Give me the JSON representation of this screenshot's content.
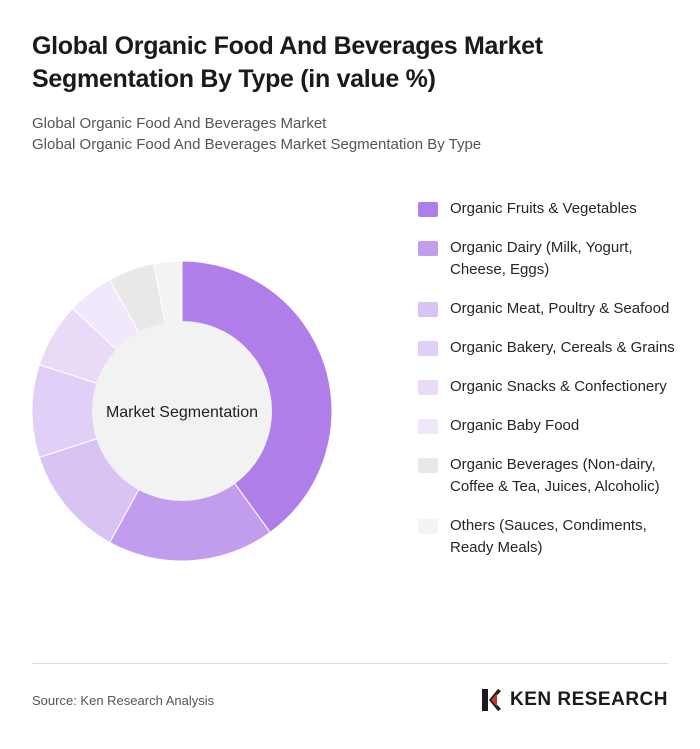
{
  "header": {
    "title": "Global Organic Food And Beverages Market Segmentation By Type (in value %)",
    "subtitle_line1": "Global Organic Food And Beverages Market",
    "subtitle_line2": "Global Organic Food And Beverages Market Segmentation By Type"
  },
  "chart_data": {
    "type": "pie",
    "variant": "donut",
    "center_label": "Market Segmentation",
    "legend_position": "right",
    "slices": [
      {
        "label": "Organic Fruits & Vegetables",
        "value": 40,
        "color": "#b07ee8"
      },
      {
        "label": "Organic Dairy (Milk, Yogurt, Cheese, Eggs)",
        "value": 18,
        "color": "#c29ded"
      },
      {
        "label": "Organic Meat, Poultry & Seafood",
        "value": 12,
        "color": "#d9c3f4"
      },
      {
        "label": "Organic Bakery, Cereals & Grains",
        "value": 10,
        "color": "#e0cff6"
      },
      {
        "label": "Organic Snacks & Confectionery",
        "value": 7,
        "color": "#e9dbf8"
      },
      {
        "label": "Organic Baby Food",
        "value": 5,
        "color": "#f1e9fb"
      },
      {
        "label": "Organic Beverages (Non-dairy, Coffee & Tea, Juices, Alcoholic)",
        "value": 5,
        "color": "#e8e8e8"
      },
      {
        "label": "Others (Sauces, Condiments, Ready Meals)",
        "value": 3,
        "color": "#f3f3f3"
      }
    ]
  },
  "footer": {
    "source": "Source: Ken Research Analysis",
    "logo_text": "KEN RESEARCH"
  }
}
